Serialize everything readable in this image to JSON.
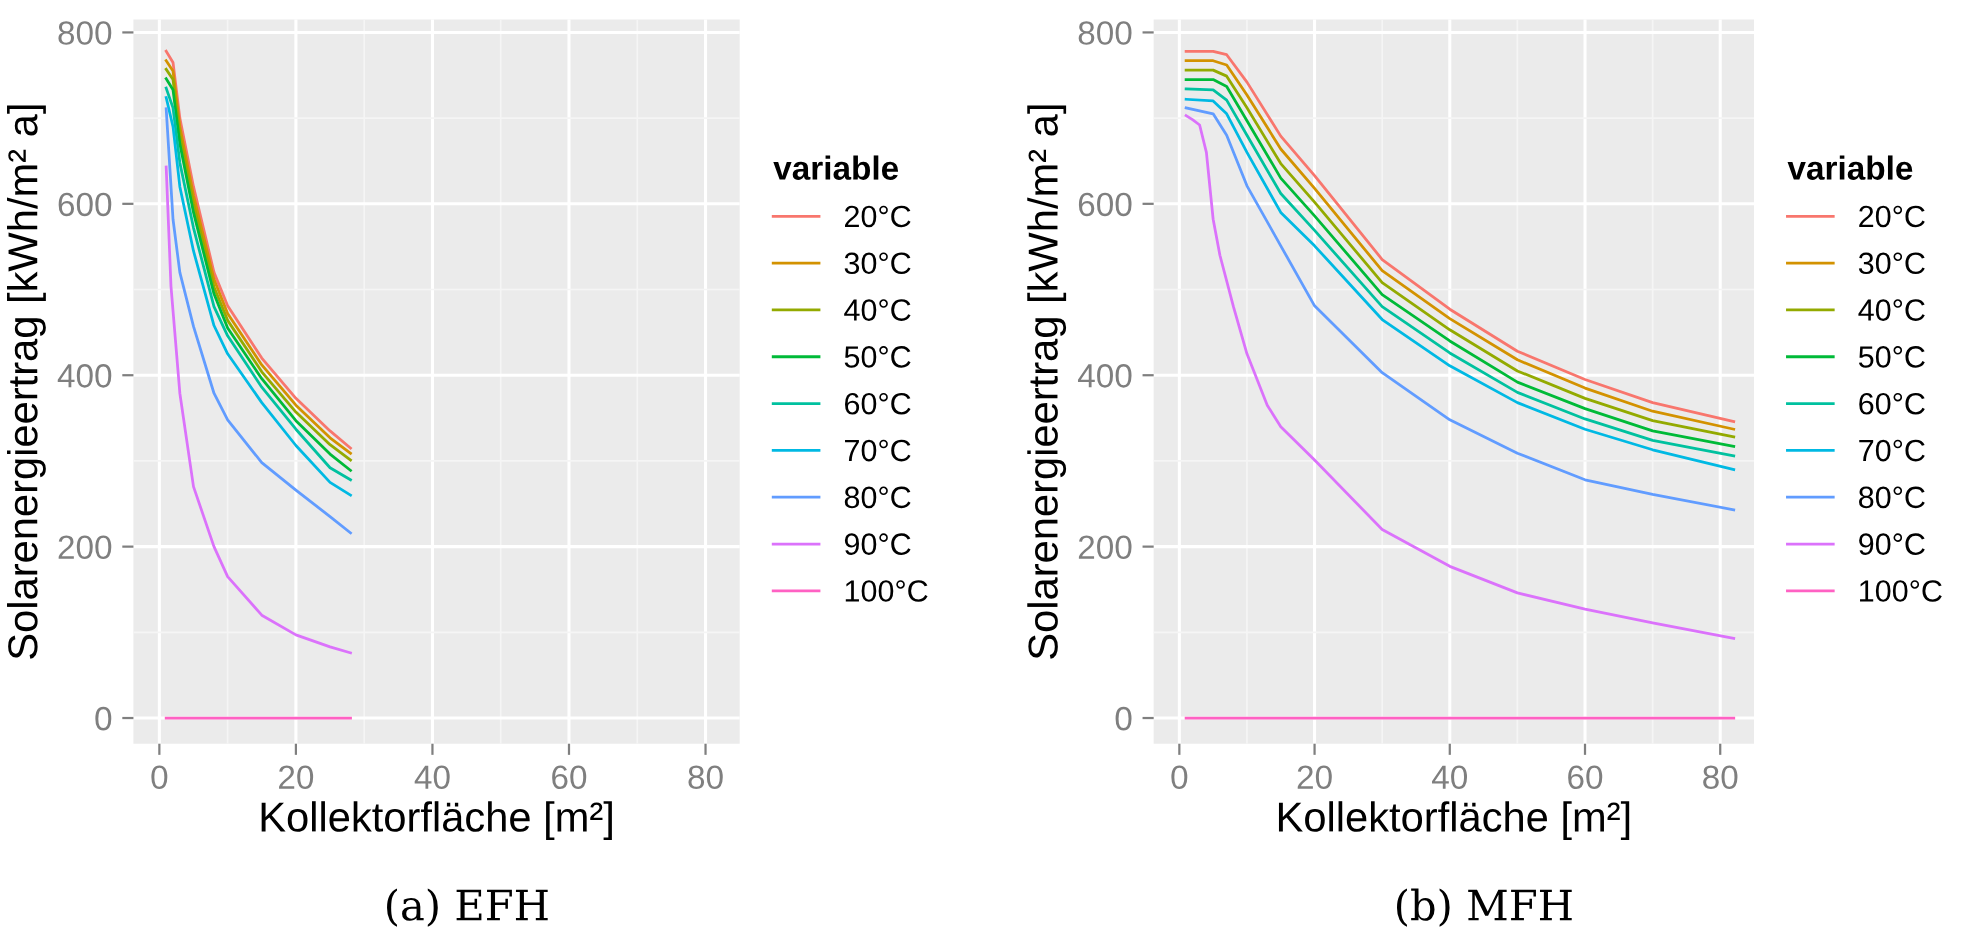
{
  "chart_data": [
    {
      "type": "line",
      "xlabel": "Kollektorfläche [m²]",
      "ylabel": "Solarenergieertrag [kWh/m² a]",
      "legend_title": "variable",
      "legend": "right",
      "grid": true,
      "xlim": [
        -3.8,
        85
      ],
      "ylim": [
        -30,
        815
      ],
      "xticks": [
        0,
        20,
        40,
        60,
        80
      ],
      "yticks": [
        0,
        200,
        400,
        600,
        800
      ],
      "annotations": [
        "(a) EFH"
      ],
      "x": [
        1,
        2,
        3,
        5,
        8,
        10,
        15,
        20,
        25,
        28
      ],
      "series": [
        {
          "name": "20°C",
          "color": "#F8766D",
          "values": [
            778,
            765,
            700,
            620,
            520,
            481,
            420,
            373,
            335,
            315
          ]
        },
        {
          "name": "30°C",
          "color": "#D39200",
          "values": [
            767,
            755,
            690,
            610,
            512,
            472,
            412,
            365,
            327,
            309
          ]
        },
        {
          "name": "40°C",
          "color": "#93AA00",
          "values": [
            757,
            745,
            680,
            600,
            503,
            464,
            404,
            357,
            319,
            301
          ]
        },
        {
          "name": "50°C",
          "color": "#00BA38",
          "values": [
            746,
            733,
            670,
            590,
            495,
            455,
            396,
            347,
            308,
            289
          ]
        },
        {
          "name": "60°C",
          "color": "#00C19F",
          "values": [
            735,
            712,
            648,
            572,
            480,
            446,
            386,
            337,
            292,
            278
          ]
        },
        {
          "name": "70°C",
          "color": "#00B9E3",
          "values": [
            724,
            690,
            620,
            545,
            458,
            425,
            368,
            318,
            275,
            260
          ]
        },
        {
          "name": "80°C",
          "color": "#619CFF",
          "values": [
            711,
            582,
            520,
            457,
            379,
            348,
            298,
            266,
            235,
            216
          ]
        },
        {
          "name": "90°C",
          "color": "#DB72FB",
          "x": [
            1,
            1.7,
            3,
            5,
            8,
            10,
            15,
            20,
            25,
            28
          ],
          "values": [
            643,
            504,
            379,
            270,
            200,
            165,
            120,
            97,
            83,
            76
          ]
        },
        {
          "name": "100°C",
          "color": "#FF61C3",
          "x": [
            1,
            28
          ],
          "values": [
            0,
            0
          ]
        }
      ]
    },
    {
      "type": "line",
      "xlabel": "Kollektorfläche [m²]",
      "ylabel": "Solarenergieertrag [kWh/m² a]",
      "legend_title": "variable",
      "legend": "right",
      "grid": true,
      "xlim": [
        -3.8,
        85
      ],
      "ylim": [
        -30,
        815
      ],
      "xticks": [
        0,
        20,
        40,
        60,
        80
      ],
      "yticks": [
        0,
        200,
        400,
        600,
        800
      ],
      "annotations": [
        "(b) MFH"
      ],
      "x": [
        1,
        5,
        7,
        10,
        15,
        20,
        30,
        40,
        50,
        60,
        70,
        82
      ],
      "series": [
        {
          "name": "20°C",
          "color": "#F8766D",
          "values": [
            778,
            778,
            774,
            742,
            679,
            633,
            535,
            477,
            428,
            395,
            368,
            346
          ]
        },
        {
          "name": "30°C",
          "color": "#D39200",
          "values": [
            767,
            767,
            762,
            727,
            664,
            618,
            522,
            466,
            418,
            385,
            358,
            337
          ]
        },
        {
          "name": "40°C",
          "color": "#93AA00",
          "values": [
            756,
            756,
            749,
            712,
            647,
            602,
            508,
            453,
            405,
            373,
            347,
            328
          ]
        },
        {
          "name": "50°C",
          "color": "#00BA38",
          "values": [
            745,
            745,
            737,
            697,
            630,
            586,
            494,
            440,
            392,
            361,
            335,
            317
          ]
        },
        {
          "name": "60°C",
          "color": "#00C19F",
          "values": [
            734,
            733,
            721,
            680,
            612,
            569,
            480,
            426,
            380,
            349,
            324,
            306
          ]
        },
        {
          "name": "70°C",
          "color": "#00B9E3",
          "values": [
            722,
            720,
            705,
            660,
            590,
            551,
            465,
            411,
            368,
            337,
            313,
            290
          ]
        },
        {
          "name": "80°C",
          "color": "#619CFF",
          "values": [
            712,
            705,
            680,
            621,
            551,
            481,
            403,
            348,
            309,
            278,
            261,
            243
          ]
        },
        {
          "name": "90°C",
          "color": "#DB72FB",
          "x": [
            1,
            2,
            3,
            4,
            5,
            6,
            8,
            10,
            13,
            15,
            20,
            30,
            40,
            50,
            60,
            70,
            82
          ],
          "values": [
            703,
            698,
            692,
            660,
            582,
            540,
            480,
            425,
            365,
            340,
            301,
            220,
            177,
            146,
            127,
            111,
            93
          ]
        },
        {
          "name": "100°C",
          "color": "#FF61C3",
          "x": [
            1,
            82
          ],
          "values": [
            0,
            0
          ]
        }
      ]
    }
  ]
}
